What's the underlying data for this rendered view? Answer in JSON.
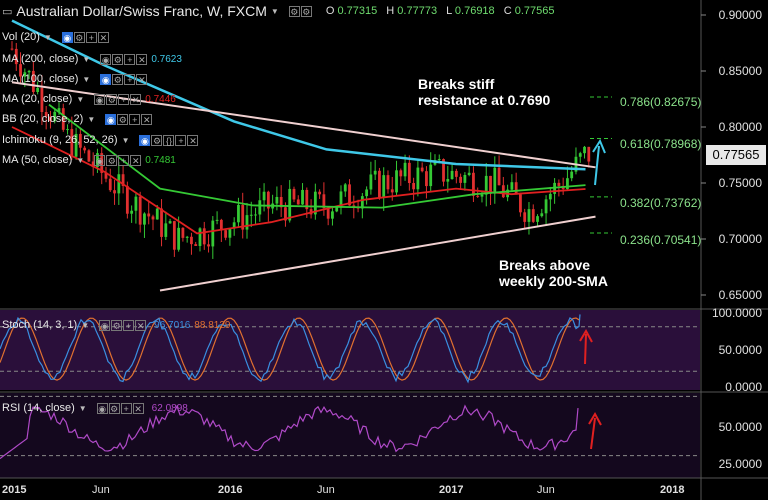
{
  "header": {
    "symbol": "Australian Dollar/Swiss Franc, W, FXCM",
    "ohlc": {
      "o_label": "O",
      "o": "0.77315",
      "h_label": "H",
      "h": "0.77773",
      "l_label": "L",
      "l": "0.76918",
      "c_label": "C",
      "c": "0.77565"
    }
  },
  "indicators": [
    {
      "label": "Vol (20)",
      "value": ""
    },
    {
      "label": "MA (200, close)",
      "value": "0.7623",
      "color": "#3fc8e8"
    },
    {
      "label": "MA (100, close)",
      "value": ""
    },
    {
      "label": "MA (20, close)",
      "value": "0.7446",
      "color": "#e02020"
    },
    {
      "label": "BB (20, close, 2)",
      "value": ""
    },
    {
      "label": "Ichimoku (9, 26, 52, 26)",
      "value": ""
    },
    {
      "label": "MA (50, close)",
      "value": "0.7481",
      "color": "#35c935"
    }
  ],
  "annotations": {
    "resistance": [
      "Breaks stiff",
      "resistance at 0.7690"
    ],
    "sma": [
      "Breaks above",
      "weekly 200-SMA"
    ]
  },
  "fib_levels": [
    {
      "label": "0.786(0.82675)",
      "value": 0.82675
    },
    {
      "label": "0.618(0.78968)",
      "value": 0.78968
    },
    {
      "label": "0.382(0.73762)",
      "value": 0.73762
    },
    {
      "label": "0.236(0.70541)",
      "value": 0.70541
    }
  ],
  "last_price": "0.77565",
  "price_axis": [
    "0.90000",
    "0.85000",
    "0.80000",
    "0.75000",
    "0.70000",
    "0.65000"
  ],
  "stoch": {
    "label": "Stoch (14, 3, 1)",
    "k": "96.7016",
    "d": "88.8129",
    "axis": [
      "100.0000",
      "50.0000",
      "0.0000"
    ]
  },
  "rsi": {
    "label": "RSI (14, close)",
    "value": "62.0898",
    "axis": [
      "50.0000",
      "25.0000"
    ]
  },
  "time_axis": [
    "2015",
    "Jun",
    "2016",
    "Jun",
    "2017",
    "Jun",
    "2018"
  ],
  "colors": {
    "up": "#35c935",
    "down": "#e03030",
    "ma200": "#3fc8e8",
    "ma20": "#e02020",
    "ma50": "#35c935",
    "trend": "#f0d0d0",
    "arrow": "#3fc8e8",
    "stoch_k": "#3a8fe0",
    "stoch_d": "#e07030",
    "rsi": "#b04ac8",
    "pane_bg": "#2a0f3a"
  },
  "chart_data": [
    {
      "type": "candlestick",
      "title": "Australian Dollar/Swiss Franc, W, FXCM",
      "ylim": [
        0.64,
        0.91
      ],
      "y_ticks": [
        0.65,
        0.7,
        0.75,
        0.8,
        0.85,
        0.9
      ],
      "x_ticks": [
        "2015",
        "Jun",
        "2016",
        "Jun",
        "2017",
        "Jun",
        "2018"
      ],
      "x_range": [
        "2015-01",
        "2018-02"
      ],
      "trend_anchors": [
        {
          "x": "2015-01",
          "close": 0.87
        },
        {
          "x": "2015-04",
          "close": 0.79
        },
        {
          "x": "2015-07",
          "close": 0.74
        },
        {
          "x": "2015-10",
          "close": 0.7
        },
        {
          "x": "2015-12",
          "close": 0.71
        },
        {
          "x": "2016-03",
          "close": 0.73
        },
        {
          "x": "2016-06",
          "close": 0.73
        },
        {
          "x": "2016-09",
          "close": 0.75
        },
        {
          "x": "2016-12",
          "close": 0.76
        },
        {
          "x": "2017-03",
          "close": 0.75
        },
        {
          "x": "2017-05",
          "close": 0.725
        },
        {
          "x": "2017-07",
          "close": 0.755
        },
        {
          "x": "2017-08",
          "close": 0.77565
        }
      ],
      "series": [
        {
          "name": "MA (200, close)",
          "points": [
            [
              "2015-01",
              0.895
            ],
            [
              "2015-06",
              0.855
            ],
            [
              "2016-01",
              0.805
            ],
            [
              "2016-06",
              0.78
            ],
            [
              "2017-01",
              0.767
            ],
            [
              "2017-08",
              0.7623
            ]
          ]
        },
        {
          "name": "MA (20, close)",
          "points": [
            [
              "2015-01",
              0.8
            ],
            [
              "2015-06",
              0.76
            ],
            [
              "2015-11",
              0.705
            ],
            [
              "2016-03",
              0.715
            ],
            [
              "2016-08",
              0.735
            ],
            [
              "2017-01",
              0.745
            ],
            [
              "2017-04",
              0.74
            ],
            [
              "2017-08",
              0.7446
            ]
          ]
        },
        {
          "name": "MA (50, close)",
          "points": [
            [
              "2015-03",
              0.82
            ],
            [
              "2015-09",
              0.745
            ],
            [
              "2016-02",
              0.73
            ],
            [
              "2016-09",
              0.728
            ],
            [
              "2017-02",
              0.74
            ],
            [
              "2017-08",
              0.7481
            ]
          ]
        }
      ],
      "trendlines": [
        {
          "points": [
            [
              "2015-01",
              0.84
            ],
            [
              "2017-08",
              0.764
            ]
          ]
        },
        {
          "points": [
            [
              "2015-09",
              0.654
            ],
            [
              "2017-08",
              0.72
            ]
          ]
        }
      ]
    },
    {
      "type": "line",
      "title": "Stoch (14, 3, 1)",
      "ylim": [
        0,
        100
      ],
      "levels": [
        80,
        20
      ],
      "series": [
        {
          "name": "K",
          "last": 96.7016
        },
        {
          "name": "D",
          "last": 88.8129
        }
      ]
    },
    {
      "type": "line",
      "title": "RSI (14, close)",
      "ylim": [
        20,
        80
      ],
      "levels": [
        70,
        30
      ],
      "series": [
        {
          "name": "RSI",
          "last": 62.0898
        }
      ]
    }
  ]
}
